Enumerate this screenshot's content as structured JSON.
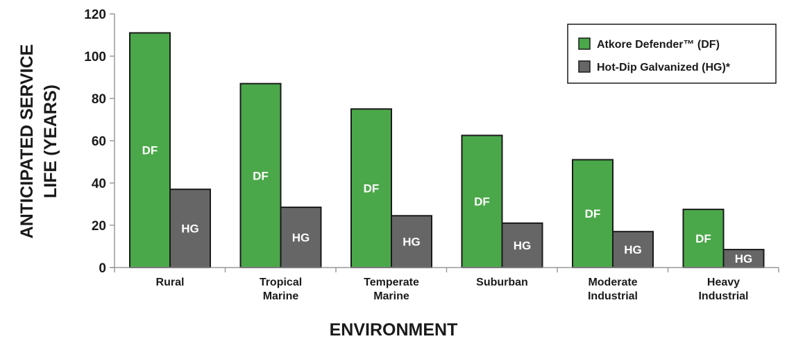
{
  "chart_data": {
    "type": "bar",
    "categories": [
      [
        "Rural"
      ],
      [
        "Tropical",
        "Marine"
      ],
      [
        "Temperate",
        "Marine"
      ],
      [
        "Suburban"
      ],
      [
        "Moderate",
        "Industrial"
      ],
      [
        "Heavy",
        "Industrial"
      ]
    ],
    "series": [
      {
        "name": "Atkore Defender™ (DF)",
        "bar_label": "DF",
        "color": "#4ba84a",
        "values": [
          111,
          87,
          75,
          62.5,
          51,
          27.5
        ]
      },
      {
        "name": "Hot-Dip Galvanized (HG)*",
        "bar_label": "HG",
        "color": "#666666",
        "values": [
          37,
          28.5,
          24.5,
          21,
          17,
          8.5
        ]
      }
    ],
    "xlabel": "ENVIRONMENT",
    "ylabel": [
      "ANTICIPATED SERVICE",
      "LIFE (YEARS)"
    ],
    "ylim": [
      0,
      120
    ],
    "yticks": [
      0,
      20,
      40,
      60,
      80,
      100,
      120
    ],
    "grid": false,
    "legend": "top-right"
  }
}
